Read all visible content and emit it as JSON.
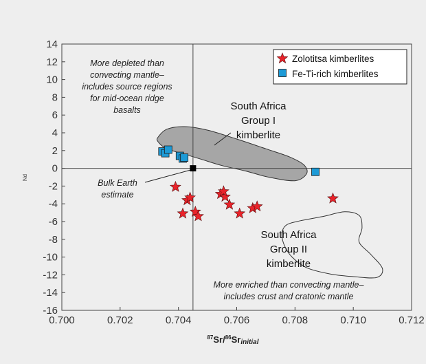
{
  "chart_data": {
    "type": "scatter",
    "xlabel_parts": {
      "sup1": "87",
      "t1": "Sr/",
      "sup2": "86",
      "t2": "Sr",
      "sub": "initial"
    },
    "ylabel": "Nd",
    "xlim": [
      0.7,
      0.712
    ],
    "ylim": [
      -16,
      14
    ],
    "x_ticks": [
      "0.700",
      "0.702",
      "0.704",
      "0.706",
      "0.708",
      "0.710",
      "0.712"
    ],
    "y_ticks": [
      "14",
      "12",
      "10",
      "8",
      "6",
      "4",
      "2",
      "0",
      "-2",
      "-4",
      "-6",
      "-8",
      "-10",
      "-12",
      "-14",
      "-16"
    ],
    "reference_lines": {
      "x": 0.7045,
      "y": 0
    },
    "series": [
      {
        "name": "Zolotitsa kimberlites",
        "marker": "star",
        "color": "#e8232a",
        "points": [
          [
            0.7039,
            -2.1
          ],
          [
            0.70415,
            -5.1
          ],
          [
            0.7043,
            -3.6
          ],
          [
            0.7044,
            -3.3
          ],
          [
            0.70458,
            -4.9
          ],
          [
            0.70468,
            -5.4
          ],
          [
            0.70545,
            -2.9
          ],
          [
            0.7056,
            -3.2
          ],
          [
            0.70555,
            -2.6
          ],
          [
            0.70575,
            -4.1
          ],
          [
            0.7061,
            -5.1
          ],
          [
            0.70655,
            -4.5
          ],
          [
            0.7067,
            -4.3
          ],
          [
            0.7093,
            -3.4
          ]
        ]
      },
      {
        "name": "Fe-Ti-rich kimberlites",
        "marker": "square",
        "color": "#1d9ad6",
        "points": [
          [
            0.70345,
            1.9
          ],
          [
            0.70355,
            1.7
          ],
          [
            0.70365,
            2.1
          ],
          [
            0.70405,
            1.4
          ],
          [
            0.70415,
            1.1
          ],
          [
            0.7042,
            1.2
          ],
          [
            0.7087,
            -0.4
          ]
        ]
      }
    ],
    "bulk_earth": {
      "x": 0.7045,
      "y": 0,
      "label": "Bulk Earth\nestimate",
      "color": "#000000"
    },
    "regions": [
      {
        "name": "South Africa\nGroup I\nkimberlite",
        "fill": "#a6a6a6",
        "outline": [
          [
            0.7033,
            3.5
          ],
          [
            0.7036,
            4.4
          ],
          [
            0.7042,
            4.7
          ],
          [
            0.705,
            4.3
          ],
          [
            0.706,
            3.3
          ],
          [
            0.707,
            2.2
          ],
          [
            0.7078,
            1.3
          ],
          [
            0.7083,
            0.4
          ],
          [
            0.7084,
            -0.6
          ],
          [
            0.708,
            -1.4
          ],
          [
            0.7071,
            -1.0
          ],
          [
            0.7063,
            -0.3
          ],
          [
            0.7055,
            0.3
          ],
          [
            0.7048,
            1.0
          ],
          [
            0.7042,
            1.6
          ],
          [
            0.7036,
            2.2
          ],
          [
            0.7033,
            3.0
          ]
        ]
      },
      {
        "name": "South Africa\nGroup II\nkimberlite",
        "fill": "#eeeeee",
        "outline": [
          [
            0.7077,
            -6.4
          ],
          [
            0.7082,
            -5.9
          ],
          [
            0.709,
            -5.4
          ],
          [
            0.7097,
            -4.9
          ],
          [
            0.7102,
            -5.3
          ],
          [
            0.7103,
            -6.7
          ],
          [
            0.7102,
            -8.3
          ],
          [
            0.7106,
            -9.7
          ],
          [
            0.711,
            -11.3
          ],
          [
            0.7108,
            -12.3
          ],
          [
            0.71,
            -12.2
          ],
          [
            0.7092,
            -11.9
          ],
          [
            0.7084,
            -11.2
          ],
          [
            0.7079,
            -10.0
          ],
          [
            0.70765,
            -8.8
          ],
          [
            0.70755,
            -7.4
          ]
        ]
      }
    ],
    "annotations": {
      "depleted": [
        "More depleted than",
        "convecting mantle–",
        "includes source regions",
        "for mid-ocean ridge",
        "basalts"
      ],
      "enriched": [
        "More enriched than convecting mantle–",
        "includes crust and cratonic mantle"
      ]
    },
    "legend_position": "top-right",
    "grid": false
  }
}
